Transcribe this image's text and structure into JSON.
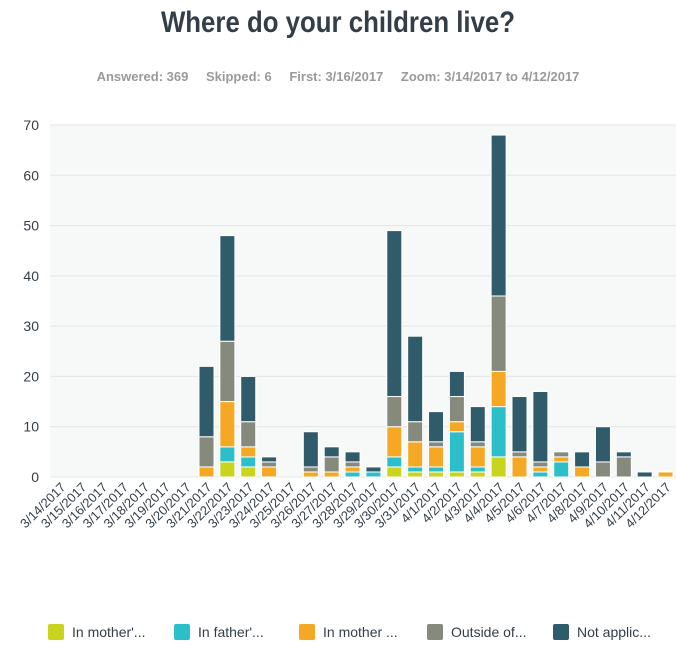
{
  "header": {
    "title": "Where do your children live?",
    "answered": "Answered: 369",
    "skipped": "Skipped: 6",
    "first": "First: 3/16/2017",
    "zoom": "Zoom: 3/14/2017 to 4/12/2017"
  },
  "chart_data": {
    "type": "bar",
    "stacked": true,
    "title": "Where do your children live?",
    "xlabel": "",
    "ylabel": "",
    "ylim": [
      0,
      70
    ],
    "yticks": [
      0,
      10,
      20,
      30,
      40,
      50,
      60,
      70
    ],
    "grid": true,
    "legend": "bottom",
    "categories": [
      "3/14/2017",
      "3/15/2017",
      "3/16/2017",
      "3/17/2017",
      "3/18/2017",
      "3/19/2017",
      "3/20/2017",
      "3/21/2017",
      "3/22/2017",
      "3/23/2017",
      "3/24/2017",
      "3/25/2017",
      "3/26/2017",
      "3/27/2017",
      "3/28/2017",
      "3/29/2017",
      "3/30/2017",
      "3/31/2017",
      "4/1/2017",
      "4/2/2017",
      "4/3/2017",
      "4/4/2017",
      "4/5/2017",
      "4/6/2017",
      "4/7/2017",
      "4/8/2017",
      "4/9/2017",
      "4/10/2017",
      "4/11/2017",
      "4/12/2017"
    ],
    "series": [
      {
        "name": "In mother'...",
        "color": "#c8d41d",
        "values": [
          0,
          0,
          0,
          0,
          0,
          0,
          0,
          0,
          3,
          2,
          0,
          0,
          0,
          0,
          0,
          0,
          2,
          1,
          1,
          1,
          1,
          4,
          0,
          0,
          0,
          0,
          0,
          0,
          0,
          0
        ]
      },
      {
        "name": "In father'...",
        "color": "#2dbfc9",
        "values": [
          0,
          0,
          0,
          0,
          0,
          0,
          0,
          0,
          3,
          2,
          0,
          0,
          0,
          0,
          1,
          1,
          2,
          1,
          1,
          8,
          1,
          10,
          0,
          1,
          3,
          0,
          0,
          0,
          0,
          0
        ]
      },
      {
        "name": "In mother ...",
        "color": "#f5a823",
        "values": [
          0,
          0,
          0,
          0,
          0,
          0,
          0,
          2,
          9,
          2,
          2,
          0,
          1,
          1,
          1,
          0,
          6,
          5,
          4,
          2,
          4,
          7,
          4,
          1,
          1,
          2,
          0,
          0,
          0,
          1
        ]
      },
      {
        "name": "Outside of...",
        "color": "#868a7d",
        "values": [
          0,
          0,
          0,
          0,
          0,
          0,
          0,
          6,
          12,
          5,
          1,
          0,
          1,
          3,
          1,
          0,
          6,
          4,
          1,
          5,
          1,
          15,
          1,
          1,
          1,
          0,
          3,
          4,
          0,
          0
        ]
      },
      {
        "name": "Not applic...",
        "color": "#2f5b6a",
        "values": [
          0,
          0,
          0,
          0,
          0,
          0,
          0,
          14,
          21,
          9,
          1,
          0,
          7,
          2,
          2,
          1,
          33,
          17,
          6,
          5,
          7,
          32,
          11,
          14,
          0,
          3,
          7,
          1,
          1,
          0
        ]
      }
    ]
  }
}
